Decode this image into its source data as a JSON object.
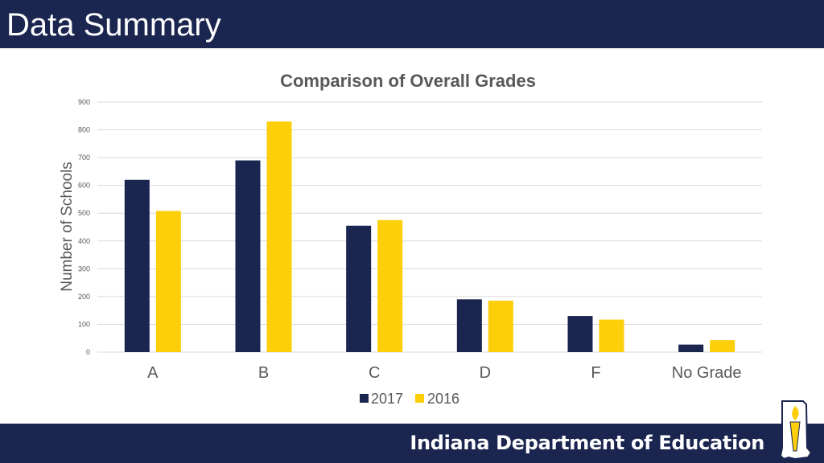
{
  "header": {
    "title": "Data Summary"
  },
  "footer": {
    "org_name": "Indiana Department of Education"
  },
  "colors": {
    "navy": "#1a2550",
    "gold": "#fccf0a",
    "grid": "#d9d9d9",
    "text": "#595959"
  },
  "chart_data": {
    "type": "bar",
    "title": "Comparison of Overall Grades",
    "xlabel": "",
    "ylabel": "Number of Schools",
    "categories": [
      "A",
      "B",
      "C",
      "D",
      "F",
      "No Grade"
    ],
    "series": [
      {
        "name": "2017",
        "values": [
          620,
          690,
          455,
          190,
          130,
          27
        ]
      },
      {
        "name": "2016",
        "values": [
          508,
          830,
          475,
          185,
          117,
          43
        ]
      }
    ],
    "ylim": [
      0,
      900
    ],
    "yticks": [
      0,
      100,
      200,
      300,
      400,
      500,
      600,
      700,
      800,
      900
    ],
    "grid": true,
    "legend_position": "bottom-center"
  }
}
